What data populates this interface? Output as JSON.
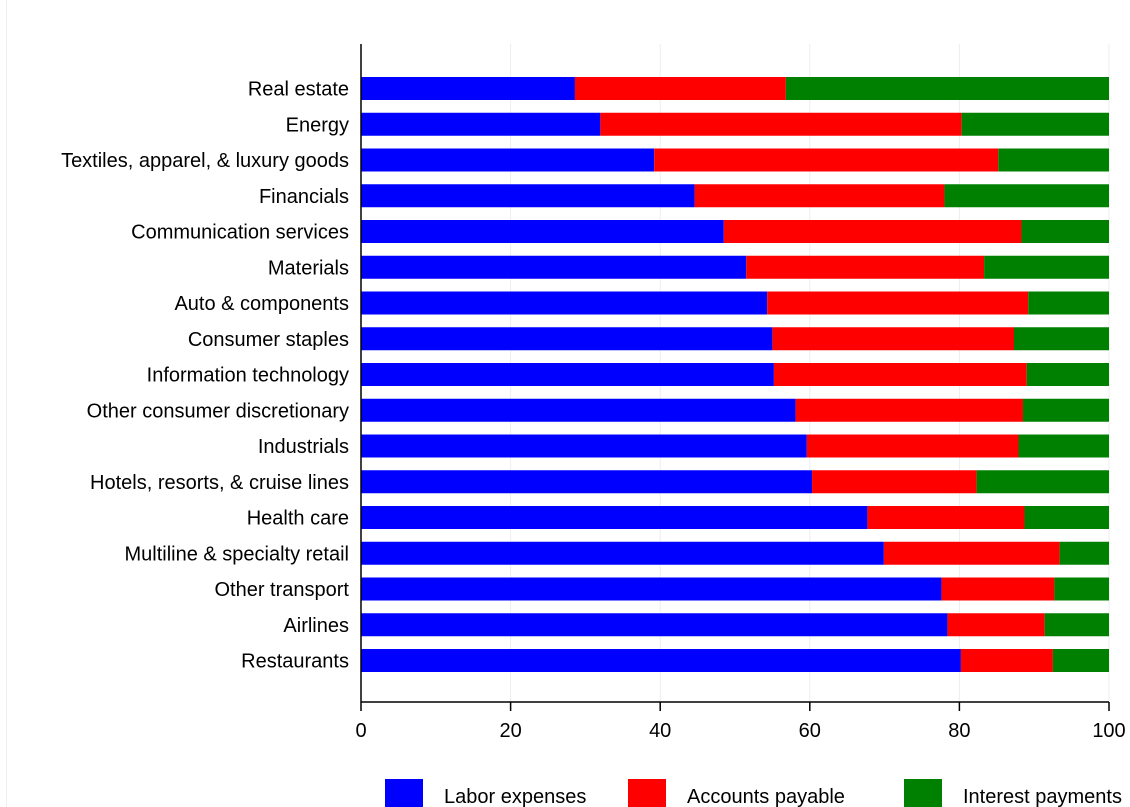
{
  "chart_data": {
    "type": "bar",
    "orientation": "horizontal",
    "stacked": true,
    "categories": [
      "Real estate",
      "Energy",
      "Textiles, apparel, & luxury goods",
      "Financials",
      "Communication services",
      "Materials",
      "Auto & components",
      "Consumer staples",
      "Information technology",
      "Other consumer discretionary",
      "Industrials",
      "Hotels, resorts, & cruise lines",
      "Health care",
      "Multiline & specialty retail",
      "Other transport",
      "Airlines",
      "Restaurants"
    ],
    "series": [
      {
        "name": "Labor expenses",
        "color": "#0000ff",
        "values": [
          28.6,
          32.0,
          39.2,
          44.6,
          48.5,
          51.5,
          54.3,
          55.0,
          55.2,
          58.1,
          59.6,
          60.3,
          67.7,
          69.9,
          77.6,
          78.4,
          80.2
        ]
      },
      {
        "name": "Accounts payable",
        "color": "#ff0000",
        "values": [
          28.2,
          48.3,
          46.0,
          33.4,
          39.8,
          31.8,
          34.9,
          32.3,
          33.8,
          30.4,
          28.3,
          22.0,
          21.0,
          23.5,
          15.1,
          13.0,
          12.3
        ]
      },
      {
        "name": "Interest payments",
        "color": "#008000",
        "values": [
          43.2,
          19.7,
          14.8,
          22.0,
          11.7,
          16.7,
          10.8,
          12.7,
          11.0,
          11.5,
          12.1,
          17.7,
          11.3,
          6.6,
          7.3,
          8.6,
          7.5
        ]
      }
    ],
    "x_ticks": [
      "0",
      "20",
      "40",
      "60",
      "80",
      "100"
    ],
    "xlim": [
      0,
      100
    ],
    "grid": true,
    "legend_position": "bottom"
  }
}
